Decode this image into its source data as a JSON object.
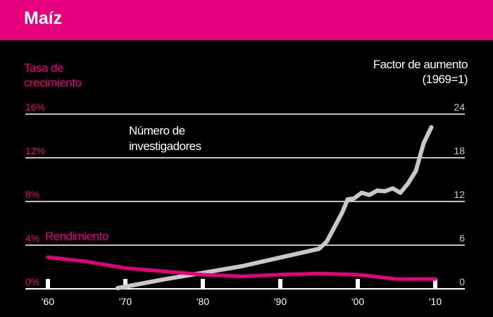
{
  "header": {
    "title": "Maíz"
  },
  "chart_data": {
    "type": "line",
    "left_axis": {
      "label_line1": "Tasa de",
      "label_line2": "crecimiento",
      "ticks": [
        "0%",
        "4%",
        "8%",
        "12%",
        "16%"
      ],
      "range": [
        0,
        16
      ],
      "color": "#e6007e"
    },
    "right_axis": {
      "label_line1": "Factor de aumento",
      "label_line2": "(1969=1)",
      "ticks": [
        "0",
        "6",
        "12",
        "18",
        "24"
      ],
      "range": [
        0,
        24
      ],
      "color": "#cccccc"
    },
    "x_axis": {
      "ticks": [
        "'60",
        "'70",
        "'80",
        "'90",
        "'00",
        "'10"
      ],
      "tick_years": [
        1960,
        1970,
        1980,
        1990,
        2000,
        2010
      ],
      "range": [
        1960,
        2010
      ]
    },
    "series": [
      {
        "name": "Número de investigadores",
        "name_line1": "Número de",
        "name_line2": "investigadores",
        "axis": "right",
        "color": "#c8c8c8",
        "points": [
          [
            1969,
            0.1
          ],
          [
            1975,
            1.3
          ],
          [
            1980,
            2.2
          ],
          [
            1985,
            3.1
          ],
          [
            1990,
            4.3
          ],
          [
            1995,
            5.5
          ],
          [
            1996,
            6.5
          ],
          [
            1997,
            8.5
          ],
          [
            1998,
            10.5
          ],
          [
            1998.7,
            12.3
          ],
          [
            1999.5,
            12.4
          ],
          [
            2000.5,
            13.2
          ],
          [
            2001.5,
            12.9
          ],
          [
            2002.5,
            13.5
          ],
          [
            2003.5,
            13.4
          ],
          [
            2004.5,
            13.8
          ],
          [
            2005.5,
            13.2
          ],
          [
            2006.5,
            14.5
          ],
          [
            2007.5,
            16.2
          ],
          [
            2008.5,
            20
          ],
          [
            2009.5,
            22.2
          ]
        ]
      },
      {
        "name": "Rendimiento",
        "axis": "left",
        "color": "#e6007e",
        "points": [
          [
            1960,
            2.9
          ],
          [
            1965,
            2.5
          ],
          [
            1970,
            1.9
          ],
          [
            1975,
            1.6
          ],
          [
            1980,
            1.3
          ],
          [
            1985,
            1.15
          ],
          [
            1990,
            1.3
          ],
          [
            1995,
            1.4
          ],
          [
            2000,
            1.3
          ],
          [
            2005,
            0.9
          ],
          [
            2010,
            0.9
          ]
        ]
      }
    ],
    "grid": true
  }
}
